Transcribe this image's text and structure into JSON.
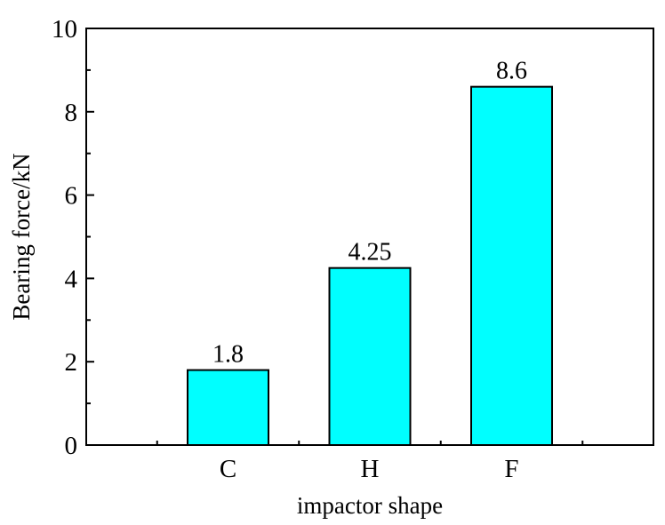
{
  "chart_data": {
    "type": "bar",
    "categories": [
      "C",
      "H",
      "F"
    ],
    "values": [
      1.8,
      4.25,
      8.6
    ],
    "data_labels": [
      "1.8",
      "4.25",
      "8.6"
    ],
    "xlabel": "impactor shape",
    "ylabel": "Bearing force/kN",
    "ylim": [
      0,
      10
    ],
    "yticks": [
      0,
      2,
      4,
      6,
      8,
      10
    ],
    "ytick_labels": [
      "0",
      "2",
      "4",
      "6",
      "8",
      "10"
    ],
    "bar_color": "#00ffff",
    "grid": false,
    "legend": "none"
  }
}
